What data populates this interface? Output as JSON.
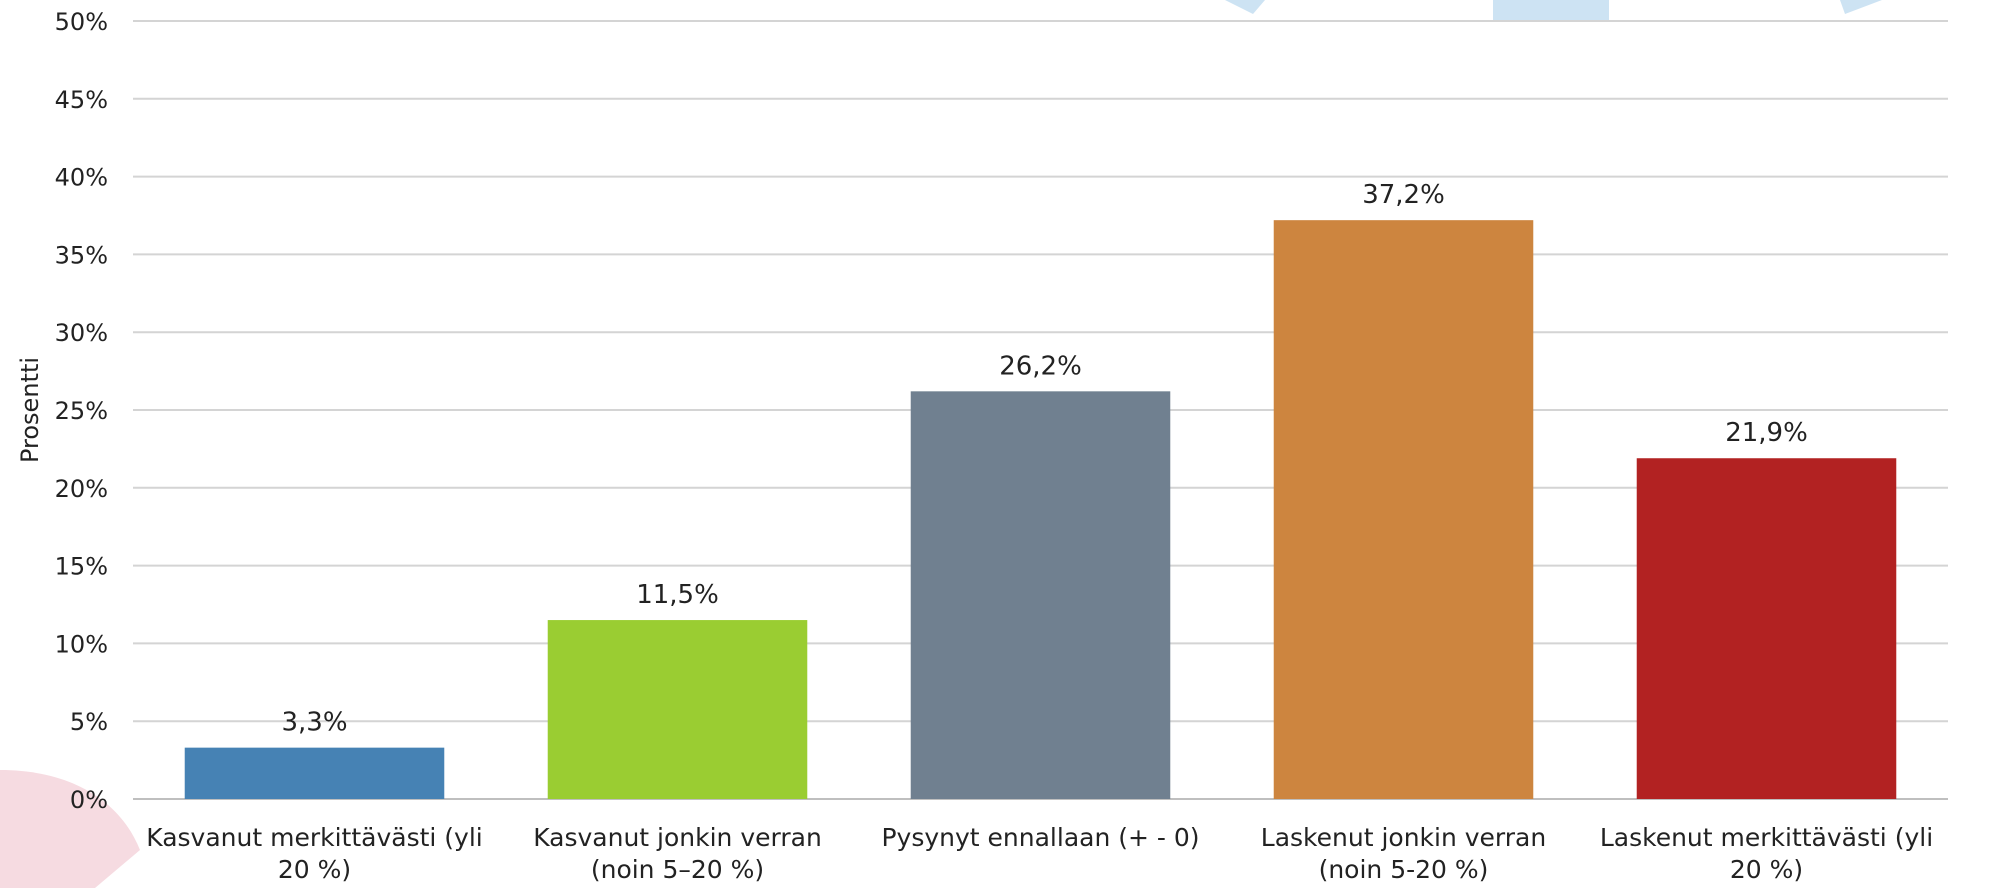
{
  "chart_data": {
    "type": "bar",
    "categories": [
      [
        "Kasvanut merkittävästi (yli",
        "20 %)"
      ],
      [
        "Kasvanut jonkin verran",
        "(noin 5–20 %)"
      ],
      [
        "Pysynyt ennallaan (+ - 0)"
      ],
      [
        "Laskenut jonkin verran",
        "(noin 5-20 %)"
      ],
      [
        "Laskenut merkittävästi (yli",
        "20 %)"
      ]
    ],
    "values": [
      3.3,
      11.5,
      26.2,
      37.2,
      21.9
    ],
    "data_labels": [
      "3,3%",
      "11,5%",
      "26,2%",
      "37,2%",
      "21,9%"
    ],
    "colors": [
      "#4682b4",
      "#9acd32",
      "#708090",
      "#cd853f",
      "#b22222"
    ],
    "ylabel": "Prosentti",
    "ylim": [
      0,
      50
    ],
    "yticks": [
      0,
      5,
      10,
      15,
      20,
      25,
      30,
      35,
      40,
      45,
      50
    ],
    "ytick_labels": [
      "0%",
      "5%",
      "10%",
      "15%",
      "20%",
      "25%",
      "30%",
      "35%",
      "40%",
      "45%",
      "50%"
    ],
    "grid": true,
    "legend": "none"
  }
}
